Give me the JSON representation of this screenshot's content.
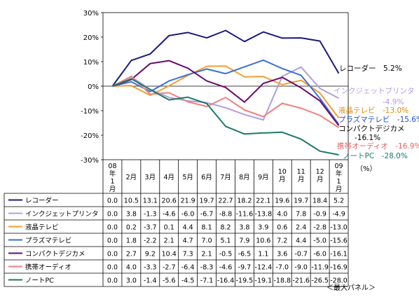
{
  "chart_data": {
    "type": "line",
    "categories": [
      "08年1月",
      "2月",
      "3月",
      "4月",
      "5月",
      "6月",
      "7月",
      "8月",
      "9月",
      "10月",
      "11月",
      "12月",
      "09年1月"
    ],
    "y_ticks": [
      "30%",
      "20%",
      "10%",
      "0%",
      "-10%",
      "-20%",
      "-30%"
    ],
    "ylim": [
      -30,
      30
    ],
    "unit_label": "（%）",
    "footnote": "＜最大パネル＞",
    "series": [
      {
        "name": "レコーダー",
        "color": "#1a1a7a",
        "end_label": "レコーダー　5.2%",
        "end_label_color": "#000000",
        "values": [
          0.0,
          10.5,
          13.1,
          20.6,
          21.9,
          19.7,
          22.7,
          18.2,
          22.1,
          19.6,
          19.7,
          18.4,
          5.2
        ]
      },
      {
        "name": "インクジェットプリンタ",
        "color": "#b39ddb",
        "end_label": "インクジェットプリンタ",
        "end_label_color": "#b39ddb",
        "end_value": "-4.9%",
        "values": [
          0.0,
          3.8,
          -1.3,
          -4.6,
          -6.0,
          -6.7,
          -8.8,
          -11.6,
          -13.8,
          4.0,
          7.8,
          -0.9,
          -4.9
        ]
      },
      {
        "name": "液晶テレビ",
        "color": "#f0a030",
        "end_label": "液晶テレビ　-13.0%",
        "end_label_color": "#e08a00",
        "values": [
          0.0,
          0.2,
          -3.7,
          0.1,
          4.4,
          8.1,
          8.2,
          3.8,
          3.9,
          0.6,
          2.4,
          -2.8,
          -13.0
        ]
      },
      {
        "name": "プラズマテレビ",
        "color": "#3b6fd6",
        "end_label": "プラズマテレビ　-15.6%",
        "end_label_color": "#1f4fbf",
        "values": [
          0.0,
          1.8,
          -2.2,
          2.1,
          4.7,
          7.0,
          5.1,
          7.9,
          10.6,
          7.2,
          4.4,
          -5.0,
          -15.6
        ]
      },
      {
        "name": "コンパクトデジカメ",
        "color": "#6a0a6a",
        "end_label": "コンパクトデジカメ",
        "end_label_color": "#000000",
        "end_value": "-16.1%",
        "values": [
          0.0,
          2.7,
          9.2,
          10.4,
          7.3,
          2.1,
          -0.5,
          -6.5,
          1.1,
          3.6,
          -0.7,
          -6.0,
          -16.1
        ]
      },
      {
        "name": "携帯オーディオ",
        "color": "#f08080",
        "end_label": "携帯オーディオ　-16.9%",
        "end_label_color": "#e06060",
        "values": [
          0.0,
          4.0,
          -3.3,
          -2.7,
          -6.4,
          -8.3,
          -4.6,
          -9.7,
          -12.4,
          -7.0,
          -9.0,
          -11.9,
          -16.9
        ]
      },
      {
        "name": "ノートPC",
        "color": "#1a7a6a",
        "end_label": "ノートPC　-28.0%",
        "end_label_color": "#1a7a6a",
        "values": [
          0.0,
          3.0,
          -1.4,
          -5.6,
          -4.5,
          -7.1,
          -16.4,
          -19.5,
          -19.1,
          -18.8,
          -21.6,
          -26.5,
          -28.0
        ]
      }
    ],
    "table": {
      "rows": [
        [
          "0.0",
          "10.5",
          "13.1",
          "20.6",
          "21.9",
          "19.7",
          "22.7",
          "18.2",
          "22.1",
          "19.6",
          "19.7",
          "18.4",
          "5.2"
        ],
        [
          "0.0",
          "3.8",
          "-1.3",
          "-4.6",
          "-6.0",
          "-6.7",
          "-8.8",
          "-11.6",
          "-13.8",
          "4.0",
          "7.8",
          "-0.9",
          "-4.9"
        ],
        [
          "0.0",
          "0.2",
          "-3.7",
          "0.1",
          "4.4",
          "8.1",
          "8.2",
          "3.8",
          "3.9",
          "0.6",
          "2.4",
          "-2.8",
          "-13.0"
        ],
        [
          "0.0",
          "1.8",
          "-2.2",
          "2.1",
          "4.7",
          "7.0",
          "5.1",
          "7.9",
          "10.6",
          "7.2",
          "4.4",
          "-5.0",
          "-15.6"
        ],
        [
          "0.0",
          "2.7",
          "9.2",
          "10.4",
          "7.3",
          "2.1",
          "-0.5",
          "-6.5",
          "1.1",
          "3.6",
          "-0.7",
          "-6.0",
          "-16.1"
        ],
        [
          "0.0",
          "4.0",
          "-3.3",
          "-2.7",
          "-6.4",
          "-8.3",
          "-4.6",
          "-9.7",
          "-12.4",
          "-7.0",
          "-9.0",
          "-11.9",
          "-16.9"
        ],
        [
          "0.0",
          "3.0",
          "-1.4",
          "-5.6",
          "-4.5",
          "-7.1",
          "-16.4",
          "-19.5",
          "-19.1",
          "-18.8",
          "-21.6",
          "-26.5",
          "-28.0"
        ]
      ]
    }
  }
}
